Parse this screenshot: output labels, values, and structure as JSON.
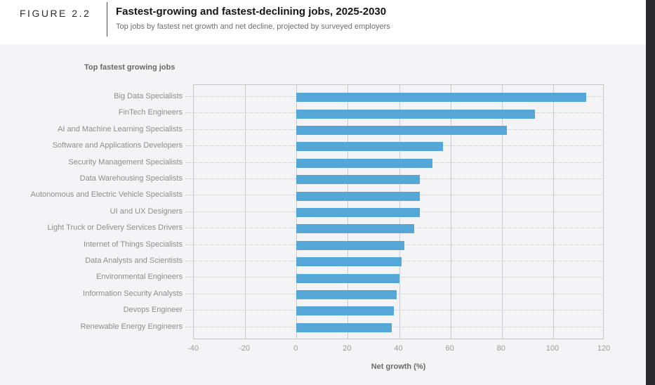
{
  "figure": {
    "label": "FIGURE 2.2",
    "title": "Fastest-growing and fastest-declining jobs, 2025-2030",
    "subtitle": "Top jobs by fastest net growth and net decline, projected by surveyed employers"
  },
  "section": {
    "label": "Top fastest growing jobs"
  },
  "chart_data": {
    "type": "bar",
    "orientation": "horizontal",
    "title": "Top fastest growing jobs",
    "categories": [
      "Big Data Specialists",
      "FinTech Engineers",
      "AI and Machine Learning Specialists",
      "Software and Applications Developers",
      "Security Management Specialists",
      "Data Warehousing Specialists",
      "Autonomous and Electric Vehicle Specialists",
      "UI and UX Designers",
      "Light Truck or Delivery Services Drivers",
      "Internet of Things Specialists",
      "Data Analysts and Scientists",
      "Environmental Engineers",
      "Information Security Analysts",
      "Devops Engineer",
      "Renewable Energy Engineers"
    ],
    "values": [
      113,
      93,
      82,
      57,
      53,
      48,
      48,
      48,
      46,
      42,
      41,
      40,
      39,
      38,
      37
    ],
    "xlabel": "Net growth (%)",
    "ylabel": "",
    "xlim": [
      -40,
      120
    ],
    "xticks": [
      -40,
      -20,
      0,
      20,
      40,
      60,
      80,
      100,
      120
    ],
    "grid": "vertical solid gridlines, dotted horizontal row leaders",
    "legend": "none",
    "bar_color": "#55a7d7"
  },
  "colors": {
    "bar": "#55a7d7",
    "content_background": "#f4f4f6",
    "header_background": "#ffffff",
    "edge_strip": "#28282d",
    "gridline": "#cbcbcb",
    "label_text": "#8d8d8d"
  }
}
